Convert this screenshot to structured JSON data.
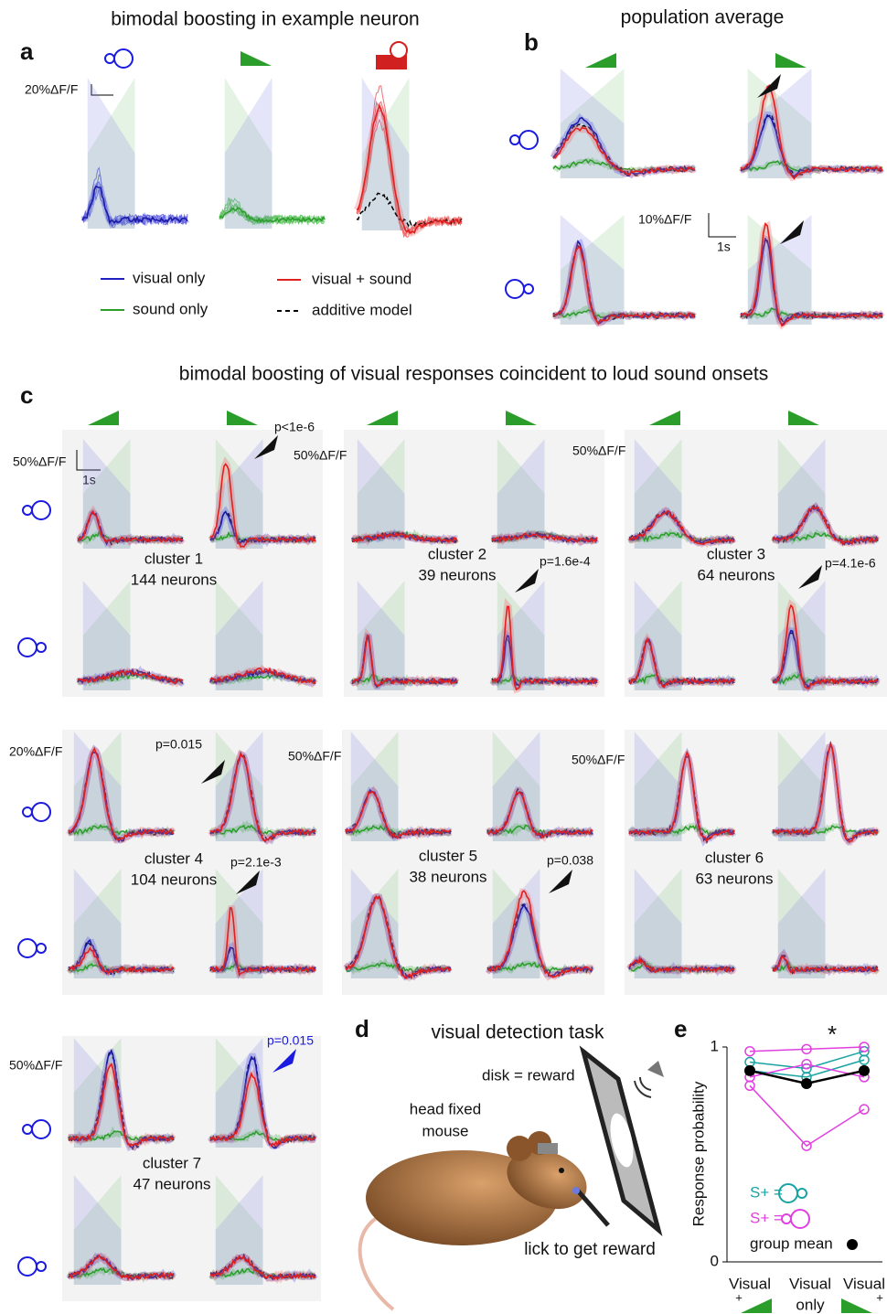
{
  "panel_a": {
    "label": "a",
    "title": "bimodal boosting in example neuron",
    "scale": "20%ΔF/F"
  },
  "legend": {
    "visual_only": "visual only",
    "sound_only": "sound only",
    "visual_sound": "visual + sound",
    "additive_model": "additive model"
  },
  "panel_b": {
    "label": "b",
    "title": "population average",
    "scale_y": "10%ΔF/F",
    "scale_x": "1s"
  },
  "panel_c": {
    "label": "c",
    "title": "bimodal boosting of visual responses coincident to loud sound onsets",
    "scale_x": "1s",
    "clusters": [
      {
        "name": "cluster 1",
        "count": "144 neurons",
        "scale": "50%ΔF/F",
        "p_values": [
          "p<1e-6"
        ]
      },
      {
        "name": "cluster 2",
        "count": "39 neurons",
        "scale": "50%ΔF/F",
        "p_values": [
          "p=1.6e-4"
        ]
      },
      {
        "name": "cluster 3",
        "count": "64 neurons",
        "scale": "50%ΔF/F",
        "p_values": [
          "p=4.1e-6"
        ]
      },
      {
        "name": "cluster 4",
        "count": "104 neurons",
        "scale": "20%ΔF/F",
        "p_values": [
          "p=0.015",
          "p=2.1e-3"
        ]
      },
      {
        "name": "cluster 5",
        "count": "38 neurons",
        "scale": "50%ΔF/F",
        "p_values": [
          "p=0.038"
        ]
      },
      {
        "name": "cluster 6",
        "count": "63 neurons",
        "scale": "50%ΔF/F"
      },
      {
        "name": "cluster 7",
        "count": "47 neurons",
        "scale": "50%ΔF/F",
        "p_values": [
          "p=0.015"
        ]
      }
    ]
  },
  "panel_d": {
    "label": "d",
    "title": "visual detection task",
    "reward": "disk = reward",
    "mouse": [
      "head fixed",
      "mouse"
    ],
    "lick": "lick to get reward"
  },
  "chart_data": {
    "type": "line",
    "label": "e",
    "annotation": "*",
    "ylabel": "Response probability",
    "categories": [
      "Visual",
      "Visual",
      "Visual"
    ],
    "category_sublabels": [
      "+",
      "only",
      "+"
    ],
    "ylim": [
      0,
      1
    ],
    "yticks": [
      0,
      1
    ],
    "series": [
      {
        "name": "S+ =",
        "color": "#1aa3a3",
        "lines": [
          [
            0.93,
            0.9,
            0.98
          ],
          [
            0.89,
            0.86,
            0.94
          ]
        ]
      },
      {
        "name": "S+ =",
        "color": "#e040e0",
        "lines": [
          [
            0.98,
            0.99,
            1.0
          ],
          [
            0.86,
            0.92,
            0.86
          ],
          [
            0.82,
            0.54,
            0.71
          ]
        ]
      },
      {
        "name": "group mean",
        "color": "#000000",
        "values": [
          0.89,
          0.83,
          0.89
        ]
      }
    ]
  }
}
